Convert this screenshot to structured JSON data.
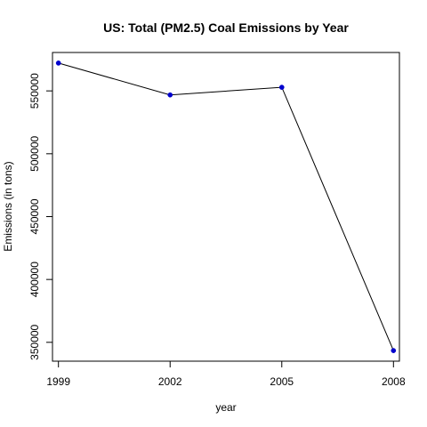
{
  "chart_data": {
    "type": "line",
    "title": "US: Total (PM2.5) Coal Emissions by Year",
    "xlabel": "year",
    "ylabel": "Emissions (in tons)",
    "x": [
      1999,
      2002,
      2005,
      2008
    ],
    "x_ticks": [
      "1999",
      "2002",
      "2005",
      "2008"
    ],
    "y_ticks": [
      "350000",
      "400000",
      "450000",
      "500000",
      "550000"
    ],
    "y_tick_values": [
      350000,
      400000,
      450000,
      500000,
      550000
    ],
    "series": [
      {
        "values": [
          572126,
          546789,
          552881,
          343432
        ]
      }
    ],
    "xlim": [
      1998.84,
      2008.16
    ],
    "ylim": [
      335008,
      580550
    ],
    "grid": false,
    "colors": {
      "line": "#000000",
      "point": "#0000cd",
      "axis": "#000000"
    }
  }
}
